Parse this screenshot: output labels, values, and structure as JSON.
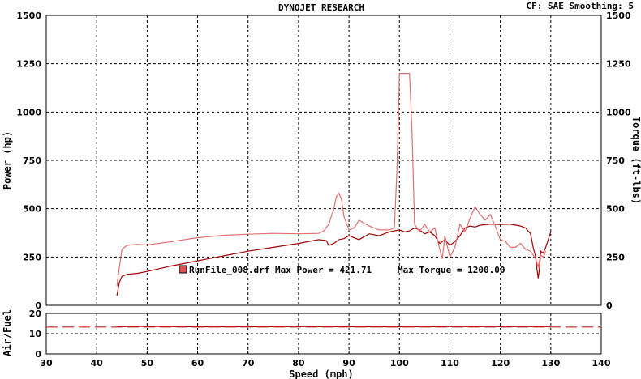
{
  "header": {
    "title": "DYNOJET RESEARCH",
    "cf_label": "CF: SAE  Smoothing: 5"
  },
  "chart_data": [
    {
      "type": "line",
      "title": "DYNOJET RESEARCH",
      "xlabel": "Speed (mph)",
      "ylabel": "Power (hp)",
      "y2label": "Torque (ft-lbs)",
      "xlim": [
        30,
        140
      ],
      "ylim": [
        0,
        1500
      ],
      "y2lim": [
        0,
        1500
      ],
      "grid": true,
      "x_ticks": [
        "30",
        "40",
        "50",
        "60",
        "70",
        "80",
        "90",
        "100",
        "110",
        "120",
        "130",
        "140"
      ],
      "y_ticks": [
        "0",
        "250",
        "500",
        "750",
        "1000",
        "1250",
        "1500"
      ],
      "y2_ticks": [
        "0",
        "250",
        "500",
        "750",
        "1000",
        "1250",
        "1500"
      ],
      "legend": {
        "text": "RunFile_008.drf Max Power = 421.71",
        "max_torque_text": "Max Torque = 1200.00",
        "color": "#e05050"
      },
      "series": [
        {
          "axis": "left",
          "color": "#a00000",
          "x": [
            44,
            44.5,
            45,
            46,
            48,
            50,
            55,
            60,
            65,
            70,
            75,
            80,
            84,
            85.5,
            86,
            87,
            88,
            89,
            90,
            92,
            94,
            96,
            98,
            100,
            101,
            102,
            103,
            104,
            105,
            106,
            107,
            108,
            109,
            110,
            111,
            112,
            113,
            114,
            115,
            116,
            118,
            120,
            122,
            124,
            125,
            126,
            126.5,
            127,
            127.3,
            127.5,
            127.8,
            128,
            128.5,
            129,
            129.5,
            130
          ],
          "y": [
            50,
            120,
            150,
            160,
            165,
            175,
            205,
            230,
            255,
            280,
            300,
            320,
            340,
            335,
            310,
            320,
            340,
            345,
            360,
            340,
            370,
            360,
            380,
            390,
            380,
            385,
            400,
            390,
            370,
            380,
            360,
            320,
            340,
            310,
            330,
            360,
            400,
            410,
            405,
            415,
            420,
            418,
            420,
            410,
            400,
            370,
            300,
            250,
            180,
            140,
            200,
            280,
            270,
            300,
            340,
            380
          ]
        },
        {
          "axis": "right",
          "color": "#e07070",
          "x": [
            44,
            44.5,
            45,
            46,
            48,
            50,
            55,
            60,
            65,
            70,
            75,
            80,
            84,
            85,
            86,
            87,
            87.5,
            88,
            88.5,
            89,
            90,
            91,
            92,
            94,
            96,
            98,
            99,
            99.5,
            100,
            100.5,
            102,
            102.5,
            103,
            104,
            105,
            106,
            107,
            108,
            108.5,
            109,
            110,
            111,
            112,
            113,
            114,
            115,
            116,
            117,
            118,
            119,
            120,
            121,
            122,
            123,
            124,
            125,
            126,
            127,
            127.5,
            128,
            128.5,
            129
          ],
          "y": [
            100,
            200,
            290,
            310,
            315,
            312,
            330,
            350,
            362,
            368,
            372,
            370,
            372,
            385,
            420,
            500,
            560,
            580,
            550,
            460,
            390,
            400,
            440,
            410,
            390,
            390,
            400,
            700,
            1200,
            1200,
            1200,
            900,
            420,
            380,
            420,
            380,
            400,
            290,
            240,
            360,
            250,
            300,
            420,
            380,
            450,
            510,
            470,
            440,
            470,
            410,
            340,
            330,
            300,
            300,
            320,
            290,
            280,
            240,
            200,
            260,
            250,
            280
          ]
        }
      ]
    },
    {
      "type": "line",
      "ylabel": "Air/Fuel",
      "xlim": [
        30,
        140
      ],
      "ylim": [
        0,
        20
      ],
      "grid": true,
      "y_ticks": [
        "0",
        "10",
        "20"
      ],
      "series": [
        {
          "color": "#a00000",
          "x": [
            44,
            50,
            60,
            80,
            100,
            110,
            120,
            128,
            130
          ],
          "y": [
            13.5,
            13.6,
            13.4,
            13.5,
            13.4,
            13.5,
            13.5,
            13.5,
            13.5
          ]
        },
        {
          "color": "#cc2020",
          "dashed": true,
          "x": [
            30,
            140
          ],
          "y": [
            13.3,
            13.3
          ]
        }
      ]
    }
  ]
}
